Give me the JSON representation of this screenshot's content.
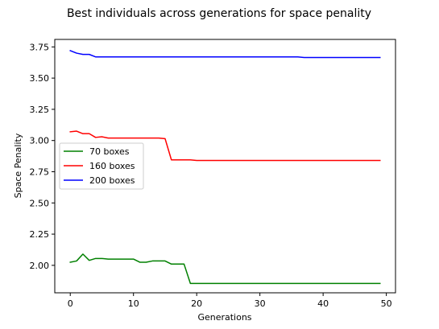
{
  "chart_data": {
    "type": "line",
    "title": "Best individuals across generations for space penality",
    "xlabel": "Generations",
    "ylabel": "Space Penality",
    "xlim": [
      -2.45,
      51.45
    ],
    "ylim": [
      1.78,
      3.81
    ],
    "xticks": [
      0,
      10,
      20,
      30,
      40,
      50
    ],
    "yticks": [
      2.0,
      2.25,
      2.5,
      2.75,
      3.0,
      3.25,
      3.5,
      3.75
    ],
    "xtick_labels": [
      "0",
      "10",
      "20",
      "30",
      "40",
      "50"
    ],
    "ytick_labels": [
      "2.00",
      "2.25",
      "2.50",
      "2.75",
      "3.00",
      "3.25",
      "3.50",
      "3.75"
    ],
    "grid": false,
    "legend_position": "center-left",
    "x": [
      0,
      1,
      2,
      3,
      4,
      5,
      6,
      7,
      8,
      9,
      10,
      11,
      12,
      13,
      14,
      15,
      16,
      17,
      18,
      19,
      20,
      21,
      22,
      23,
      24,
      25,
      26,
      27,
      28,
      29,
      30,
      31,
      32,
      33,
      34,
      35,
      36,
      37,
      38,
      39,
      40,
      41,
      42,
      43,
      44,
      45,
      46,
      47,
      48,
      49
    ],
    "series": [
      {
        "name": "70 boxes",
        "color": "#008000",
        "values": [
          2.025,
          2.035,
          2.09,
          2.04,
          2.055,
          2.055,
          2.05,
          2.05,
          2.05,
          2.05,
          2.05,
          2.025,
          2.025,
          2.035,
          2.035,
          2.035,
          2.01,
          2.01,
          2.01,
          1.855,
          1.855,
          1.855,
          1.855,
          1.855,
          1.855,
          1.855,
          1.855,
          1.855,
          1.855,
          1.855,
          1.855,
          1.855,
          1.855,
          1.855,
          1.855,
          1.855,
          1.855,
          1.855,
          1.855,
          1.855,
          1.855,
          1.855,
          1.855,
          1.855,
          1.855,
          1.855,
          1.855,
          1.855,
          1.855,
          1.855
        ]
      },
      {
        "name": "160 boxes",
        "color": "#ff0000",
        "values": [
          3.07,
          3.075,
          3.055,
          3.055,
          3.025,
          3.03,
          3.02,
          3.02,
          3.02,
          3.02,
          3.02,
          3.02,
          3.02,
          3.02,
          3.02,
          3.015,
          2.845,
          2.845,
          2.845,
          2.845,
          2.84,
          2.84,
          2.84,
          2.84,
          2.84,
          2.84,
          2.84,
          2.84,
          2.84,
          2.84,
          2.84,
          2.84,
          2.84,
          2.84,
          2.84,
          2.84,
          2.84,
          2.84,
          2.84,
          2.84,
          2.84,
          2.84,
          2.84,
          2.84,
          2.84,
          2.84,
          2.84,
          2.84,
          2.84,
          2.84
        ]
      },
      {
        "name": "200 boxes",
        "color": "#0000ff",
        "values": [
          3.72,
          3.7,
          3.69,
          3.69,
          3.67,
          3.67,
          3.67,
          3.67,
          3.67,
          3.67,
          3.67,
          3.67,
          3.67,
          3.67,
          3.67,
          3.67,
          3.67,
          3.67,
          3.67,
          3.67,
          3.67,
          3.67,
          3.67,
          3.67,
          3.67,
          3.67,
          3.67,
          3.67,
          3.67,
          3.67,
          3.67,
          3.67,
          3.67,
          3.67,
          3.67,
          3.67,
          3.67,
          3.665,
          3.665,
          3.665,
          3.665,
          3.665,
          3.665,
          3.665,
          3.665,
          3.665,
          3.665,
          3.665,
          3.665,
          3.665
        ]
      }
    ]
  }
}
